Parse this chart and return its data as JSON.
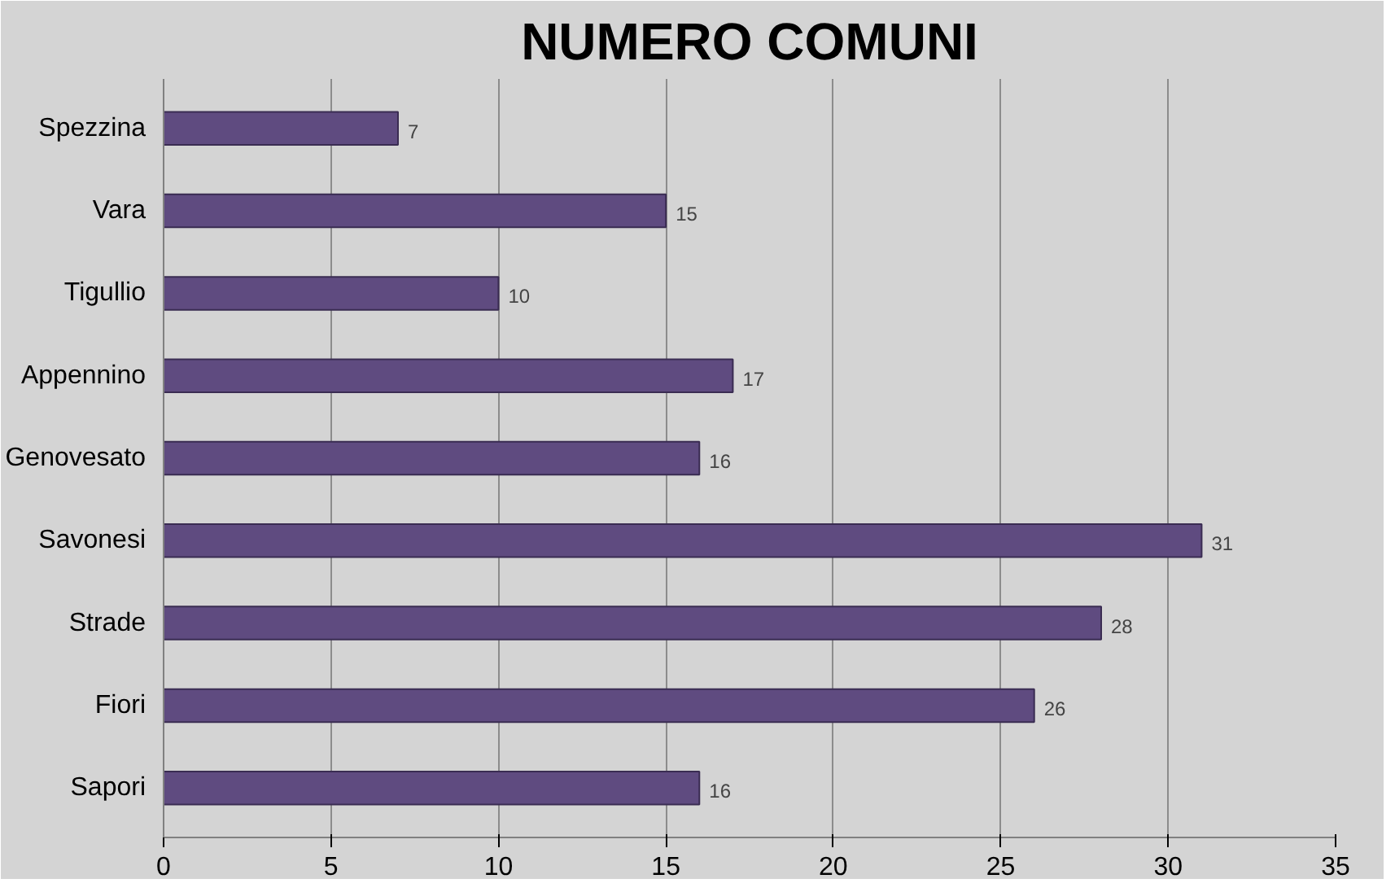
{
  "chart_data": {
    "type": "bar",
    "orientation": "horizontal",
    "title": "NUMERO COMUNI",
    "categories": [
      "Spezzina",
      "Vara",
      "Tigullio",
      "Appennino",
      "Genovesato",
      "Savonesi",
      "Strade",
      "Fiori",
      "Sapori"
    ],
    "values": [
      7,
      15,
      10,
      17,
      16,
      31,
      28,
      26,
      16
    ],
    "color": "#5f4b80",
    "xlim": [
      0,
      35
    ],
    "xticks": [
      0,
      5,
      10,
      15,
      20,
      25,
      30,
      35
    ],
    "grid": "x",
    "data_labels": true
  }
}
